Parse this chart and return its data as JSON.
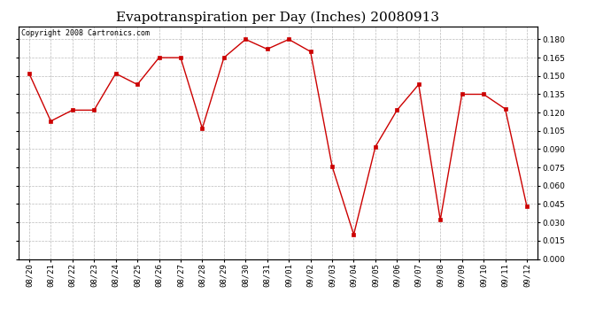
{
  "title": "Evapotranspiration per Day (Inches) 20080913",
  "copyright": "Copyright 2008 Cartronics.com",
  "x_labels": [
    "08/20",
    "08/21",
    "08/22",
    "08/23",
    "08/24",
    "08/25",
    "08/26",
    "08/27",
    "08/28",
    "08/29",
    "08/30",
    "08/31",
    "09/01",
    "09/02",
    "09/03",
    "09/04",
    "09/05",
    "09/06",
    "09/07",
    "09/08",
    "09/09",
    "09/10",
    "09/11",
    "09/12"
  ],
  "y_values": [
    0.152,
    0.113,
    0.122,
    0.122,
    0.152,
    0.143,
    0.165,
    0.165,
    0.107,
    0.165,
    0.18,
    0.172,
    0.18,
    0.17,
    0.076,
    0.02,
    0.092,
    0.122,
    0.143,
    0.032,
    0.135,
    0.135,
    0.123,
    0.043
  ],
  "line_color": "#cc0000",
  "marker": "s",
  "marker_size": 2.5,
  "marker_color": "#cc0000",
  "background_color": "#ffffff",
  "plot_bg_color": "#ffffff",
  "grid_color": "#bbbbbb",
  "ylim": [
    0.0,
    0.1905
  ],
  "yticks": [
    0.0,
    0.015,
    0.03,
    0.045,
    0.06,
    0.075,
    0.09,
    0.105,
    0.12,
    0.135,
    0.15,
    0.165,
    0.18
  ],
  "title_fontsize": 11,
  "tick_fontsize": 6.5,
  "copyright_fontsize": 6
}
